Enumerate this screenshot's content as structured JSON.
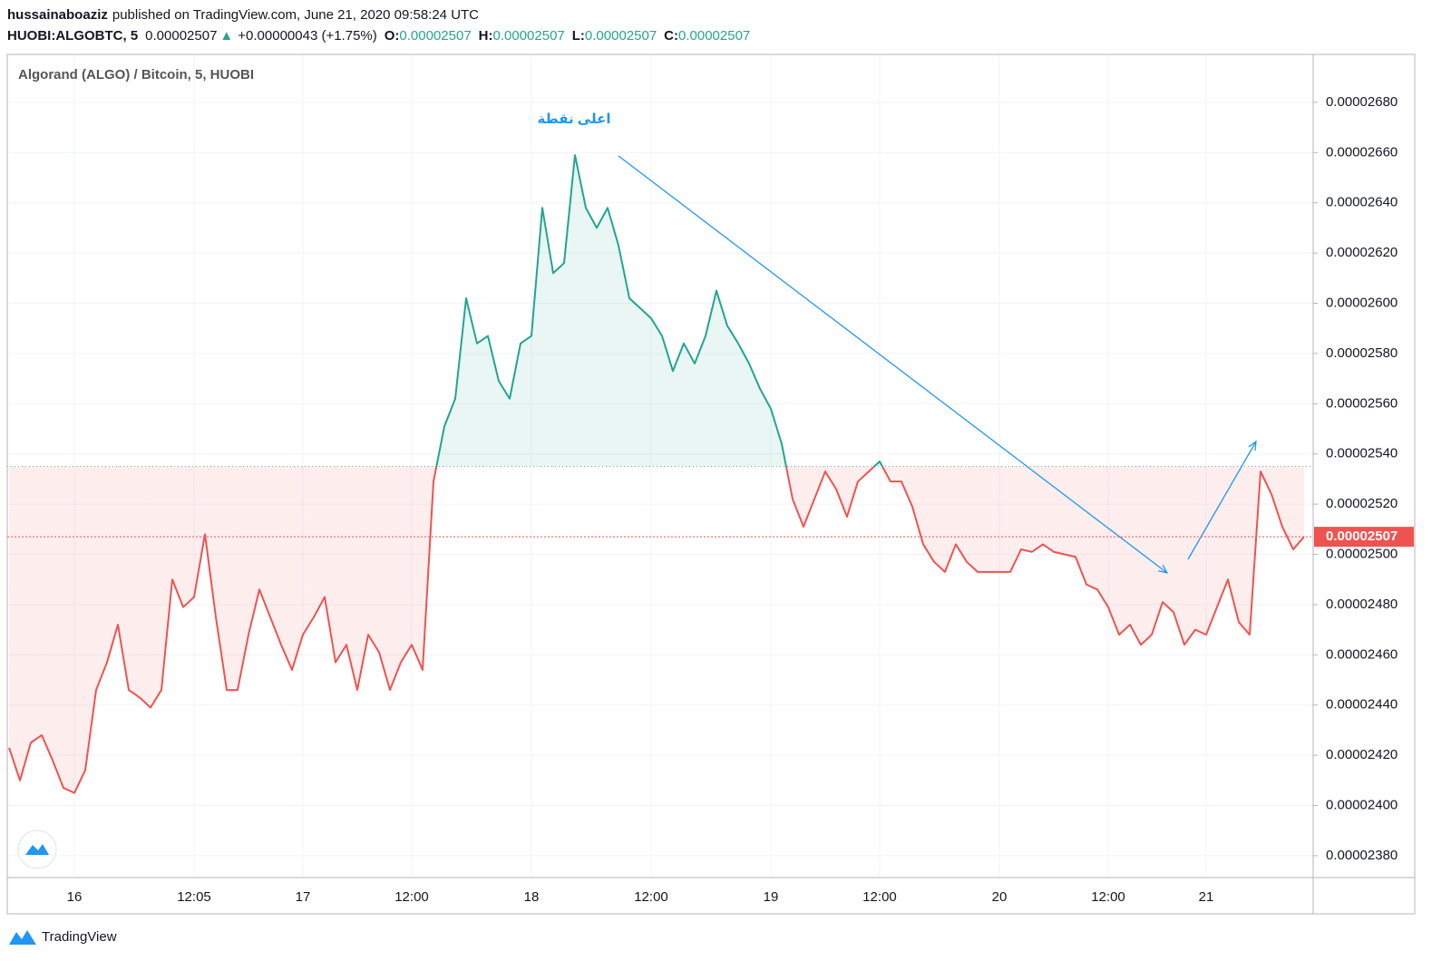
{
  "header": {
    "author": "hussainaboaziz",
    "published": "published on TradingView.com, June 21, 2020 09:58:24 UTC",
    "symbol": "HUOBI:ALGOBTC, 5",
    "last": "0.00002507",
    "arrow": "▲",
    "change": "+0.00000043 (+1.75%)",
    "ohlc": [
      {
        "label": "O:",
        "value": "0.00002507"
      },
      {
        "label": "H:",
        "value": "0.00002507"
      },
      {
        "label": "L:",
        "value": "0.00002507"
      },
      {
        "label": "C:",
        "value": "0.00002507"
      }
    ]
  },
  "chart_data": {
    "type": "line",
    "title": "Algorand (ALGO) / Bitcoin, 5, HUOBI",
    "annotation": "اعلى نقطة",
    "categories": [
      null,
      null,
      null,
      null,
      null,
      null,
      "16",
      null,
      null,
      null,
      null,
      null,
      null,
      null,
      null,
      null,
      null,
      "12:05",
      null,
      null,
      null,
      null,
      null,
      null,
      null,
      null,
      null,
      "17",
      null,
      null,
      null,
      null,
      null,
      null,
      null,
      null,
      null,
      "12:00",
      null,
      null,
      null,
      null,
      null,
      null,
      null,
      null,
      null,
      null,
      "18",
      null,
      null,
      null,
      null,
      null,
      null,
      null,
      null,
      null,
      null,
      "12:00",
      null,
      null,
      null,
      null,
      null,
      null,
      null,
      null,
      null,
      null,
      "19",
      null,
      null,
      null,
      null,
      null,
      null,
      null,
      null,
      null,
      "12:00",
      null,
      null,
      null,
      null,
      null,
      null,
      null,
      null,
      null,
      null,
      "20",
      null,
      null,
      null,
      null,
      null,
      null,
      null,
      null,
      null,
      "12:00",
      null,
      null,
      null,
      null,
      null,
      null,
      null,
      null,
      "21",
      null,
      null,
      null,
      null,
      null,
      null,
      null,
      null,
      null
    ],
    "values": [
      2.423e-05,
      2.41e-05,
      2.425e-05,
      2.428e-05,
      2.418e-05,
      2.407e-05,
      2.405e-05,
      2.414e-05,
      2.446e-05,
      2.457e-05,
      2.472e-05,
      2.446e-05,
      2.443e-05,
      2.439e-05,
      2.446e-05,
      2.49e-05,
      2.479e-05,
      2.483e-05,
      2.508e-05,
      2.475e-05,
      2.446e-05,
      2.446e-05,
      2.468e-05,
      2.486e-05,
      2.475e-05,
      2.464e-05,
      2.454e-05,
      2.468e-05,
      2.475e-05,
      2.483e-05,
      2.457e-05,
      2.464e-05,
      2.446e-05,
      2.468e-05,
      2.461e-05,
      2.446e-05,
      2.457e-05,
      2.464e-05,
      2.454e-05,
      2.529e-05,
      2.551e-05,
      2.562e-05,
      2.602e-05,
      2.584e-05,
      2.587e-05,
      2.569e-05,
      2.562e-05,
      2.584e-05,
      2.587e-05,
      2.638e-05,
      2.612e-05,
      2.616e-05,
      2.659e-05,
      2.638e-05,
      2.63e-05,
      2.638e-05,
      2.623e-05,
      2.602e-05,
      2.598e-05,
      2.594e-05,
      2.587e-05,
      2.573e-05,
      2.584e-05,
      2.576e-05,
      2.587e-05,
      2.605e-05,
      2.591e-05,
      2.584e-05,
      2.576e-05,
      2.566e-05,
      2.558e-05,
      2.544e-05,
      2.522e-05,
      2.511e-05,
      2.522e-05,
      2.533e-05,
      2.526e-05,
      2.515e-05,
      2.529e-05,
      2.533e-05,
      2.537e-05,
      2.529e-05,
      2.529e-05,
      2.519e-05,
      2.504e-05,
      2.497e-05,
      2.493e-05,
      2.504e-05,
      2.497e-05,
      2.493e-05,
      2.493e-05,
      2.493e-05,
      2.493e-05,
      2.502e-05,
      2.501e-05,
      2.504e-05,
      2.501e-05,
      2.5e-05,
      2.499e-05,
      2.488e-05,
      2.486e-05,
      2.479e-05,
      2.468e-05,
      2.472e-05,
      2.464e-05,
      2.468e-05,
      2.481e-05,
      2.477e-05,
      2.464e-05,
      2.47e-05,
      2.468e-05,
      2.479e-05,
      2.49e-05,
      2.473e-05,
      2.468e-05,
      2.533e-05,
      2.524e-05,
      2.511e-05,
      2.502e-05,
      2.507e-05
    ],
    "baseline": 2.535e-05,
    "last_price": {
      "value": 2.507e-05,
      "label": "0.00002507"
    },
    "up_color": "#22a592",
    "down_color": "#ef5350",
    "grid": true,
    "ylim": [
      2.3713e-05,
      2.6991e-05
    ],
    "yticks": [
      {
        "value": 2.38e-05,
        "label": "0.00002380"
      },
      {
        "value": 2.4e-05,
        "label": "0.00002400"
      },
      {
        "value": 2.42e-05,
        "label": "0.00002420"
      },
      {
        "value": 2.44e-05,
        "label": "0.00002440"
      },
      {
        "value": 2.46e-05,
        "label": "0.00002460"
      },
      {
        "value": 2.48e-05,
        "label": "0.00002480"
      },
      {
        "value": 2.5e-05,
        "label": "0.00002500"
      },
      {
        "value": 2.52e-05,
        "label": "0.00002520"
      },
      {
        "value": 2.54e-05,
        "label": "0.00002540"
      },
      {
        "value": 2.56e-05,
        "label": "0.00002560"
      },
      {
        "value": 2.58e-05,
        "label": "0.00002580"
      },
      {
        "value": 2.6e-05,
        "label": "0.00002600"
      },
      {
        "value": 2.62e-05,
        "label": "0.00002620"
      },
      {
        "value": 2.64e-05,
        "label": "0.00002640"
      },
      {
        "value": 2.66e-05,
        "label": "0.00002660"
      },
      {
        "value": 2.68e-05,
        "label": "0.00002680"
      }
    ]
  }
}
